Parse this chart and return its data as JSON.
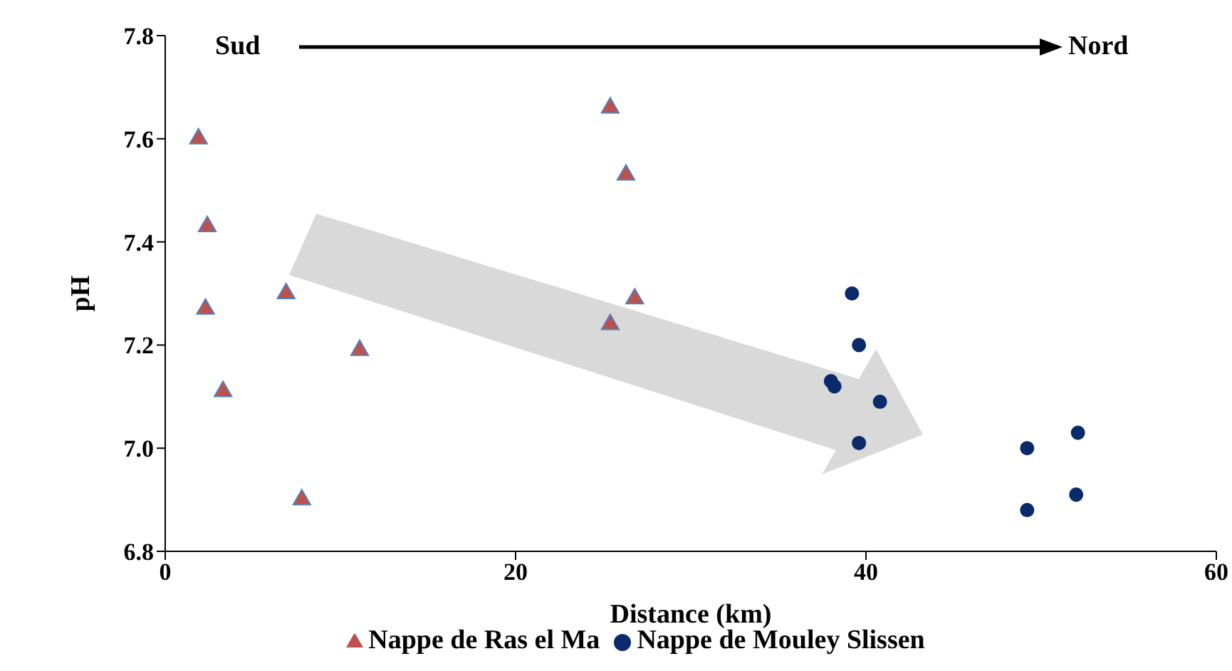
{
  "chart_data": {
    "type": "scatter",
    "xlabel": "Distance (km)",
    "ylabel": "pH",
    "xlim": [
      0,
      60
    ],
    "xticks": [
      0,
      20,
      40,
      60
    ],
    "ylim": [
      6.8,
      7.8
    ],
    "yticks": [
      {
        "value": 6.8,
        "label": "6.8"
      },
      {
        "value": 7.0,
        "label": "7.0"
      },
      {
        "value": 7.2,
        "label": "7.2"
      },
      {
        "value": 7.4,
        "label": "7.4"
      },
      {
        "value": 7.6,
        "label": "7.6"
      },
      {
        "value": 7.8,
        "label": "7.8"
      }
    ],
    "grid": false,
    "legend": "bottom",
    "annotations": [
      "Sud",
      "Nord"
    ],
    "series": [
      {
        "name": "Nappe de Ras el Ma",
        "color": "#c0504d",
        "marker": "triangle",
        "x": [
          1.9,
          2.4,
          2.3,
          3.3,
          6.9,
          7.8,
          11.1,
          25.4,
          26.3,
          26.8,
          25.4
        ],
        "values": [
          7.6,
          7.43,
          7.27,
          7.11,
          7.3,
          6.9,
          7.19,
          7.66,
          7.53,
          7.29,
          7.24
        ]
      },
      {
        "name": "Nappe de Mouley Slissen",
        "color": "#0a2a6b",
        "marker": "circle",
        "x": [
          39.2,
          39.6,
          38.0,
          38.2,
          40.8,
          39.6,
          49.2,
          52.1,
          49.2,
          52.0
        ],
        "values": [
          7.3,
          7.2,
          7.13,
          7.12,
          7.09,
          7.01,
          7.0,
          7.03,
          6.88,
          6.91
        ]
      }
    ]
  }
}
